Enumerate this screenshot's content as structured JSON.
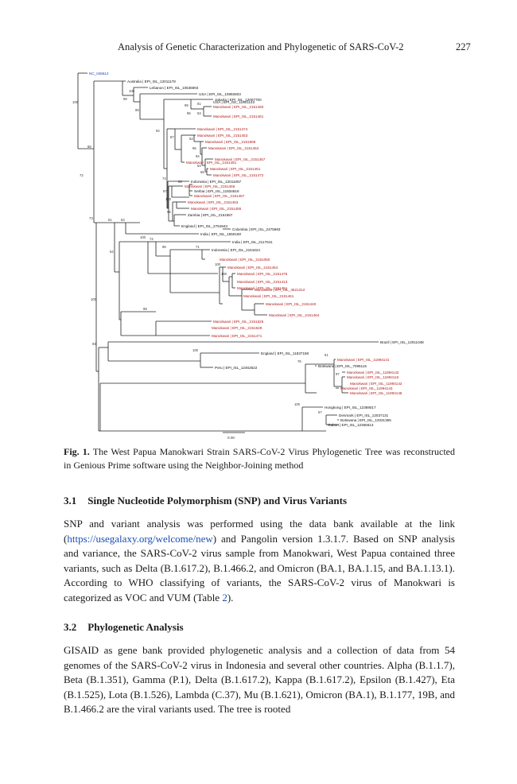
{
  "running_head": {
    "title": "Analysis of Genetic Characterization and Phylogenetic of SARS-CoV-2",
    "page_number": "227"
  },
  "figure": {
    "tip_labels": {
      "ref": "NC_045512",
      "t1": "Australia | EPI_ISL_12011178",
      "t2": "Lebanon | EPI_ISL_10536904",
      "t3": "USA | EPI_ISL_10892603",
      "t4": "USA | EPI_ISL_11801143",
      "t5": "Jakarta | EPI_ISL_12007700",
      "m1": "Manokwari | EPI_ISL_2151460",
      "m2": "Manokwari | EPI_ISL_2151461",
      "m3": "Manokwari | EPI_ISL_2151474",
      "m4": "Manokwari | EPI_ISL_2151453",
      "m5": "Manokwari | EPI_ISL_2151808",
      "m6": "Manokwari | EPI_ISL_2151452",
      "m7": "Manokwari | EPI_ISL_2151457",
      "m8": "Manokwari | EPI_ISL_2151451",
      "m9": "Manokwari | EPI_ISL_2151472",
      "m10": "Manokwari | EPI_ISL_2151451",
      "t6": "Indonesia | EPI_ISL_12011057",
      "m11": "Manokwari | EPI_ISL_2151466",
      "t7": "Serbia | EPI_ISL_11834816",
      "m12": "Manokwari | EPI_ISL_2151467",
      "m13": "Manokwari | EPI_ISL_2151463",
      "m14": "Manokwari | EPI_ISL_2151455",
      "t8": "Zambia | EPI_ISL_2151557",
      "t9": "England | EPI_ISL_2754943",
      "t10": "Colombia | EPI_ISL_2475983",
      "t11": "India | EPI_ISL_1550190",
      "t12": "India | EPI_ISL_2117041",
      "t13": "Indonesia | EPI_ISL_2151624",
      "m15": "Manokwari | EPI_ISL_2151050",
      "m16": "Manokwari | EPI_ISL_2151454",
      "m17": "Manokwari | EPI_ISL_2151476",
      "m18": "Manokwari | EPI_ISL_2151413",
      "m19": "Manokwari | EPI_ISL_2151451",
      "m20": "Manokwari | EPI_ISL_4521312",
      "m21": "Manokwari | EPI_ISL_2151461",
      "m22": "Manokwari | EPI_ISL_2151440",
      "m23": "Manokwari | EPI_ISL_2151464",
      "m24": "Manokwari | EPI_ISL_2151626",
      "m25": "Manokwari | EPI_ISL_2151528",
      "m26": "Manokwari | EPI_ISL_2151471",
      "t14": "Brazil | EPI_ISL_12011048",
      "t15": "England | EPI_ISL_11837158",
      "t16": "Peru | EPI_ISL_12462522",
      "m27": "Manokwari | EPI_ISL_11994141",
      "t17": "Botswana | EPI_ISL_7095115",
      "m28": "Manokwari | EPI_ISL_11994142",
      "m29": "Manokwari | EPI_ISL_11994116",
      "m30": "Manokwari | EPI_ISL_11994142",
      "m31": "Manokwari | EPI_ISL_11994143",
      "m32": "Manokwari | EPI_ISL_11994148",
      "t18": "Hongkong | EPI_ISL_12369017",
      "t19": "Denmark | EPI_ISL_12037131",
      "t20": "Botswana | EPI_ISL_12031365",
      "t21": "Gabon | EPI_ISL_12356613"
    },
    "support_values": {
      "b1": "100",
      "b2": "72",
      "b3": "99",
      "b4": "100",
      "b5": "88",
      "b6": "99",
      "b7": "99",
      "b8": "96",
      "b9": "61",
      "b10": "53",
      "b11": "94",
      "b12": "87",
      "b13": "52",
      "b14": "95",
      "b15": "94",
      "b16": "54",
      "b17": "65",
      "b18": "74",
      "b19": "97",
      "b20": "95",
      "b21": "100",
      "b22": "96",
      "b23": "73",
      "b24": "61",
      "b25": "53",
      "b26": "54",
      "b27": "100",
      "b28": "74",
      "b29": "96",
      "b30": "71",
      "b31": "100",
      "b32": "100",
      "b33": "100",
      "b34": "99",
      "b35": "93",
      "b36": "100",
      "b37": "76",
      "b38": "61",
      "b39": "100",
      "b40": "97",
      "b41": "57"
    },
    "scale_bar_label": "0.00"
  },
  "caption": {
    "label": "Fig. 1.",
    "text": "The West Papua Manokwari Strain SARS-CoV-2 Virus Phylogenetic Tree was reconstructed in Genious Prime software using the Neighbor-Joining method"
  },
  "section_31": {
    "number": "3.1",
    "title": "Single Nucleotide Polymorphism (SNP) and Virus Variants",
    "text_a": "SNP and variant analysis was performed using the data bank available at the link (",
    "link": "https://usegalaxy.org/welcome/new",
    "text_b": ") and Pangolin version 1.3.1.7. Based on SNP analysis and variance, the SARS-CoV-2 virus sample from Manokwari, West Papua contained three variants, such as Delta (B.1.617.2), B.1.466.2, and Omicron (BA.1, BA.1.15, and BA.1.13.1). According to WHO classifying of variants, the SARS-CoV-2 virus of Manokwari is categorized as VOC and VUM (Table ",
    "table_ref": "2",
    "text_c": ")."
  },
  "section_32": {
    "number": "3.2",
    "title": "Phylogenetic Analysis",
    "text": "GISAID as gene bank provided phylogenetic analysis and a collection of data from 54 genomes of the SARS-CoV-2 virus in Indonesia and several other countries. Alpha (B.1.1.7), Beta (B.1.351), Gamma (P.1), Delta (B.1.617.2), Kappa (B.1.617.2), Epsilon (B.1.427), Eta (B.1.525), Lota (B.1.526), Lambda (C.37), Mu (B.1.621), Omicron (BA.1), B.1.177, 19B, and B.1.466.2 are the viral variants used. The tree is rooted"
  },
  "colors": {
    "manokwari_label": "#b01818",
    "reference_label": "#1f3fb0",
    "other_label": "#111111",
    "branch": "#222222",
    "link": "#1a4fb5"
  }
}
